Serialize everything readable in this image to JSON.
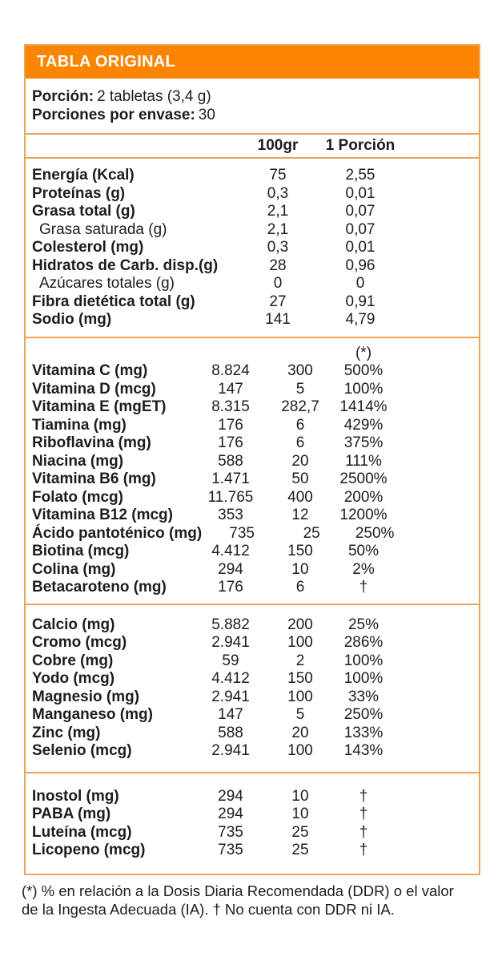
{
  "title": "TABLA ORIGINAL",
  "serving": {
    "portion_label": "Porción:",
    "portion_value": "2 tabletas (3,4 g)",
    "servings_label": "Porciones por envase:",
    "servings_value": "30"
  },
  "columns": {
    "col_100g": "100gr",
    "col_portion": "1 Porción",
    "col_pct": "(*)"
  },
  "sections": {
    "macros": {
      "rows": [
        {
          "label": "Energía (Kcal)",
          "per100": "75",
          "portion": "2,55",
          "style": "bold"
        },
        {
          "label": "Proteínas (g)",
          "per100": "0,3",
          "portion": "0,01",
          "style": "bold"
        },
        {
          "label": "Grasa total (g)",
          "per100": "2,1",
          "portion": "0,07",
          "style": "bold"
        },
        {
          "label": "Grasa saturada (g)",
          "per100": "2,1",
          "portion": "0,07",
          "style": "sub"
        },
        {
          "label": "Colesterol (mg)",
          "per100": "0,3",
          "portion": "0,01",
          "style": "bold"
        },
        {
          "label": "Hidratos de Carb. disp.(g)",
          "per100": "28",
          "portion": "0,96",
          "style": "bold"
        },
        {
          "label": "Azúcares totales (g)",
          "per100": "0",
          "portion": "0",
          "style": "sub"
        },
        {
          "label": "Fibra dietética total (g)",
          "per100": "27",
          "portion": "0,91",
          "style": "bold"
        },
        {
          "label": "Sodio (mg)",
          "per100": "141",
          "portion": "4,79",
          "style": "bold"
        }
      ]
    },
    "vitamins": {
      "rows": [
        {
          "label": "Vitamina C (mg)",
          "per100": "8.824",
          "portion": "300",
          "pct": "500%"
        },
        {
          "label": "Vitamina D (mcg)",
          "per100": "147",
          "portion": "5",
          "pct": "100%"
        },
        {
          "label": "Vitamina E (mgET)",
          "per100": "8.315",
          "portion": "282,7",
          "pct": "1414%"
        },
        {
          "label": "Tiamina (mg)",
          "per100": "176",
          "portion": "6",
          "pct": "429%"
        },
        {
          "label": "Riboflavina (mg)",
          "per100": "176",
          "portion": "6",
          "pct": "375%"
        },
        {
          "label": "Niacina (mg)",
          "per100": "588",
          "portion": "20",
          "pct": "111%"
        },
        {
          "label": "Vitamina B6 (mg)",
          "per100": "1.471",
          "portion": "50",
          "pct": "2500%"
        },
        {
          "label": "Folato (mcg)",
          "per100": "11.765",
          "portion": "400",
          "pct": "200%"
        },
        {
          "label": "Vitamina B12 (mcg)",
          "per100": "353",
          "portion": "12",
          "pct": "1200%"
        },
        {
          "label": "Ácido pantoténico (mg)",
          "per100": "735",
          "portion": "25",
          "pct": "250%"
        },
        {
          "label": "Biotina (mcg)",
          "per100": "4.412",
          "portion": "150",
          "pct": "50%"
        },
        {
          "label": "Colina (mg)",
          "per100": "294",
          "portion": "10",
          "pct": "2%"
        },
        {
          "label": "Betacaroteno (mg)",
          "per100": "176",
          "portion": "6",
          "pct": "†"
        }
      ]
    },
    "minerals": {
      "rows": [
        {
          "label": "Calcio (mg)",
          "per100": "5.882",
          "portion": "200",
          "pct": "25%"
        },
        {
          "label": "Cromo (mcg)",
          "per100": "2.941",
          "portion": "100",
          "pct": "286%"
        },
        {
          "label": "Cobre (mg)",
          "per100": "59",
          "portion": "2",
          "pct": "100%"
        },
        {
          "label": "Yodo (mcg)",
          "per100": "4.412",
          "portion": "150",
          "pct": "100%"
        },
        {
          "label": "Magnesio (mg)",
          "per100": "2.941",
          "portion": "100",
          "pct": "33%"
        },
        {
          "label": "Manganeso (mg)",
          "per100": "147",
          "portion": "5",
          "pct": "250%"
        },
        {
          "label": "Zinc (mg)",
          "per100": "588",
          "portion": "20",
          "pct": "133%"
        },
        {
          "label": "Selenio (mcg)",
          "per100": "2.941",
          "portion": "100",
          "pct": "143%"
        }
      ]
    },
    "others": {
      "rows": [
        {
          "label": "Inostol (mg)",
          "per100": "294",
          "portion": "10",
          "pct": "†"
        },
        {
          "label": "PABA (mg)",
          "per100": "294",
          "portion": "10",
          "pct": "†"
        },
        {
          "label": "Luteína (mcg)",
          "per100": "735",
          "portion": "25",
          "pct": "†"
        },
        {
          "label": "Licopeno (mcg)",
          "per100": "735",
          "portion": "25",
          "pct": "†"
        }
      ]
    }
  },
  "footnote": "(*) % en relación a la Dosis Diaria Recomendada (DDR) o el valor de la Ingesta Adecuada (IA). †  No cuenta con DDR ni IA.",
  "colors": {
    "accent_orange": "#fb8500",
    "border_orange": "#eba45c",
    "text": "#1d1d1b"
  }
}
